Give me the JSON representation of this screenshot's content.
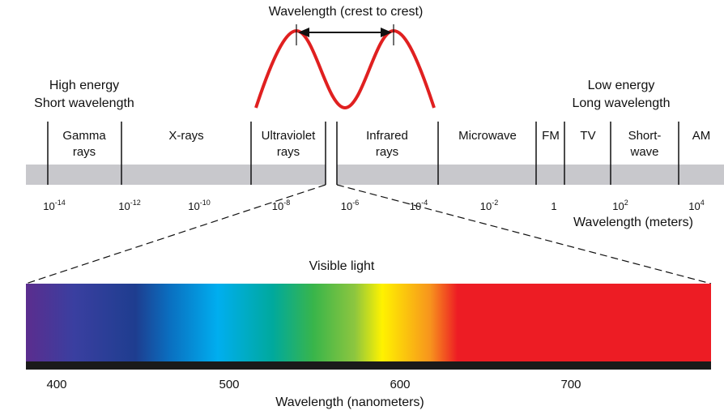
{
  "wave_label": "Wavelength (crest to crest)",
  "left_note": {
    "line1": "High energy",
    "line2": "Short wavelength"
  },
  "right_note": {
    "line1": "Low energy",
    "line2": "Long wavelength"
  },
  "bands": [
    {
      "id": "gamma",
      "lines": [
        "Gamma",
        "rays"
      ]
    },
    {
      "id": "xrays",
      "lines": [
        "X-rays"
      ]
    },
    {
      "id": "ultraviolet",
      "lines": [
        "Ultraviolet",
        "rays"
      ]
    },
    {
      "id": "infrared",
      "lines": [
        "Infrared",
        "rays"
      ]
    },
    {
      "id": "microwave",
      "lines": [
        "Microwave"
      ]
    },
    {
      "id": "fm",
      "lines": [
        "FM"
      ]
    },
    {
      "id": "tv",
      "lines": [
        "TV"
      ]
    },
    {
      "id": "shortwave",
      "lines": [
        "Short-",
        "wave"
      ]
    },
    {
      "id": "am",
      "lines": [
        "AM"
      ]
    }
  ],
  "meter_ticks": [
    {
      "base": "10",
      "exp": "-14"
    },
    {
      "base": "10",
      "exp": "-12"
    },
    {
      "base": "10",
      "exp": "-10"
    },
    {
      "base": "10",
      "exp": "-8"
    },
    {
      "base": "10",
      "exp": "-6"
    },
    {
      "base": "10",
      "exp": "-4"
    },
    {
      "base": "10",
      "exp": "-2"
    },
    {
      "base": "1",
      "exp": ""
    },
    {
      "base": "10",
      "exp": "2"
    },
    {
      "base": "10",
      "exp": "4"
    }
  ],
  "meter_axis_label": "Wavelength (meters)",
  "visible_label": "Visible light",
  "nm_ticks": [
    "400",
    "500",
    "600",
    "700"
  ],
  "nm_axis_label": "Wavelength (nanometers)",
  "colors": {
    "band_bar": "#c8c8cc",
    "wave": "#e02020",
    "spectrum": [
      "#5b2d8e",
      "#3a3fa0",
      "#1e3d8f",
      "#0a6fc0",
      "#00aeef",
      "#00a99d",
      "#39b54a",
      "#8dc63f",
      "#fff200",
      "#f7941d",
      "#ed1c24",
      "#ed1c24"
    ],
    "axis_bar": "#1a1a1a"
  }
}
